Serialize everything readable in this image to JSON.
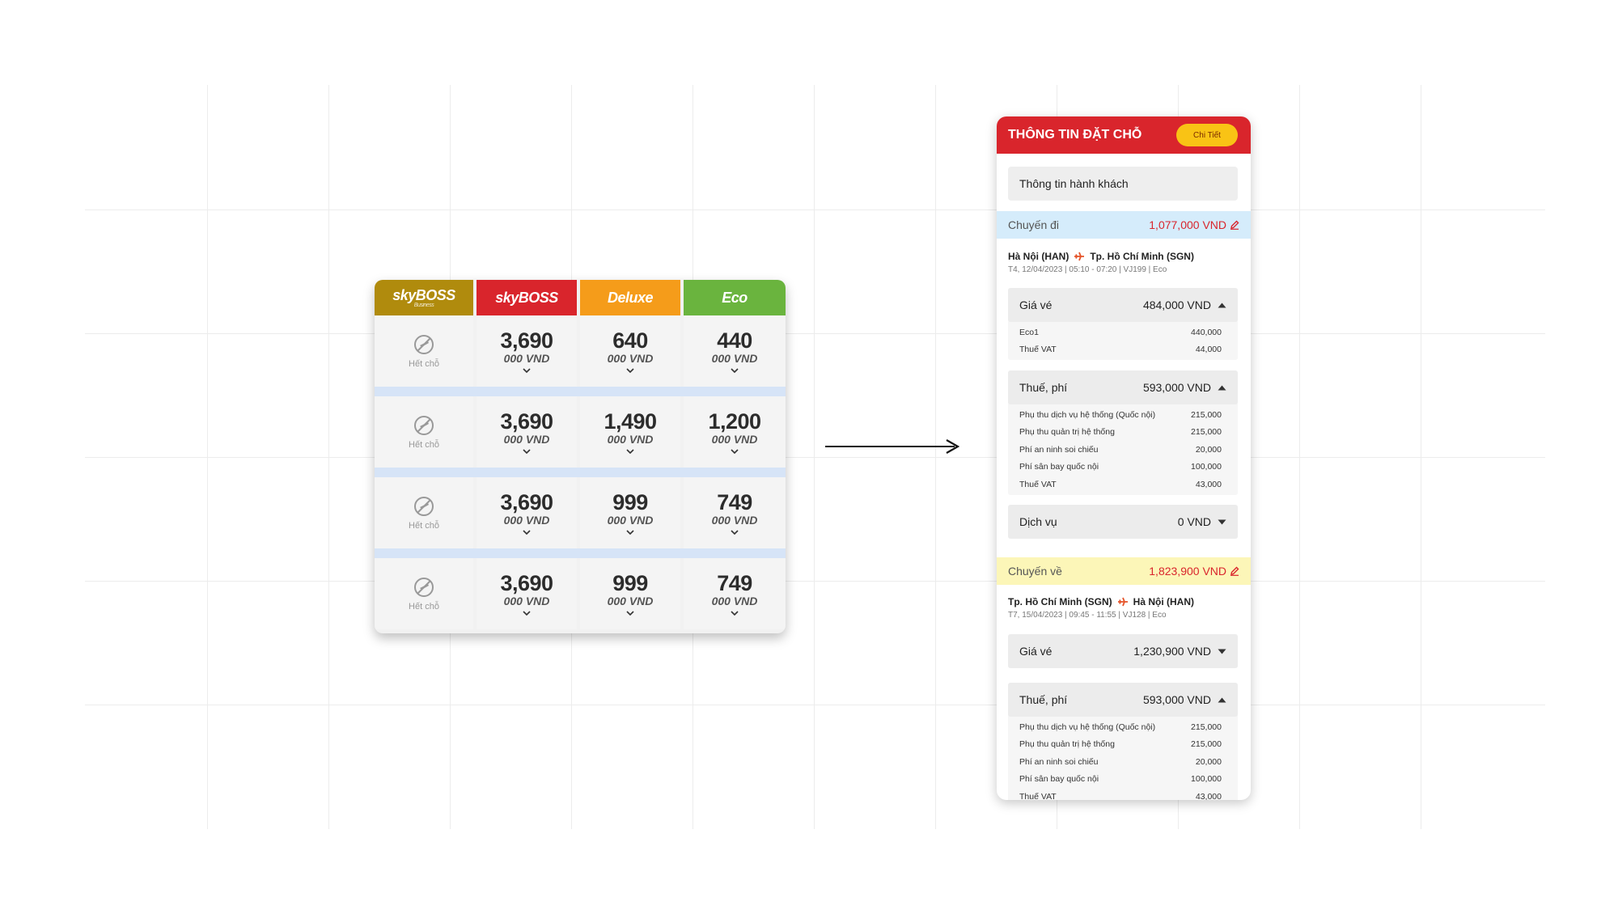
{
  "fare_table": {
    "headers": [
      {
        "brand": "skyBOSS",
        "sub": "Business",
        "color": "#b08b0d"
      },
      {
        "brand": "skyBOSS",
        "sub": "",
        "color": "#d9252c"
      },
      {
        "brand": "Deluxe",
        "sub": "",
        "color": "#f59c1a"
      },
      {
        "brand": "Eco",
        "sub": "",
        "color": "#6ab43e"
      }
    ],
    "soldout_label": "Hết chỗ",
    "currency_unit": "000 VND",
    "rows": [
      {
        "prices": [
          "3,690",
          "640",
          "440"
        ]
      },
      {
        "prices": [
          "3,690",
          "1,490",
          "1,200"
        ]
      },
      {
        "prices": [
          "3,690",
          "999",
          "749"
        ]
      },
      {
        "prices": [
          "3,690",
          "999",
          "749"
        ]
      }
    ]
  },
  "booking": {
    "title": "THÔNG TIN ĐẶT CHỖ",
    "detail_button": "Chi Tiết",
    "passenger_info": "Thông tin hành khách",
    "outbound": {
      "label": "Chuyến đi",
      "total": "1,077,000 VND",
      "bar_color": "#d5ecfb",
      "from": "Hà Nội (HAN)",
      "to": "Tp. Hồ Chí Minh (SGN)",
      "details": "T4, 12/04/2023 | 05:10 - 07:20 | VJ199 | Eco",
      "fare": {
        "label": "Giá vé",
        "amount": "484,000 VND",
        "items": [
          {
            "name": "Eco1",
            "value": "440,000"
          },
          {
            "name": "Thuế VAT",
            "value": "44,000"
          }
        ]
      },
      "taxes": {
        "label": "Thuế, phí",
        "amount": "593,000 VND",
        "items": [
          {
            "name": "Phụ thu dịch vụ hệ thống (Quốc nội)",
            "value": "215,000"
          },
          {
            "name": "Phụ thu quản trị hệ thống",
            "value": "215,000"
          },
          {
            "name": "Phí an ninh soi chiếu",
            "value": "20,000"
          },
          {
            "name": "Phí sân bay quốc nội",
            "value": "100,000"
          },
          {
            "name": "Thuế VAT",
            "value": "43,000"
          }
        ]
      },
      "services": {
        "label": "Dịch vụ",
        "amount": "0 VND"
      }
    },
    "return": {
      "label": "Chuyến về",
      "total": "1,823,900 VND",
      "bar_color": "#fcf6b8",
      "from": "Tp. Hồ Chí Minh (SGN)",
      "to": "Hà Nội (HAN)",
      "details": "T7, 15/04/2023 | 09:45 - 11:55 | VJ128 | Eco",
      "fare": {
        "label": "Giá vé",
        "amount": "1,230,900 VND"
      },
      "taxes": {
        "label": "Thuế, phí",
        "amount": "593,000 VND",
        "items": [
          {
            "name": "Phụ thu dịch vụ hệ thống (Quốc nội)",
            "value": "215,000"
          },
          {
            "name": "Phụ thu quản trị hệ thống",
            "value": "215,000"
          },
          {
            "name": "Phí an ninh soi chiếu",
            "value": "20,000"
          },
          {
            "name": "Phí sân bay quốc nội",
            "value": "100,000"
          },
          {
            "name": "Thuế VAT",
            "value": "43,000"
          }
        ]
      }
    }
  },
  "colors": {
    "red": "#d9252c",
    "yellow": "#f9c315",
    "separator": "#d6e4f7"
  },
  "icons": [
    "no-flight-icon",
    "chevron-down-icon",
    "chevron-up-icon",
    "edit-pencil-icon",
    "plane-icon",
    "right-arrow-icon"
  ]
}
